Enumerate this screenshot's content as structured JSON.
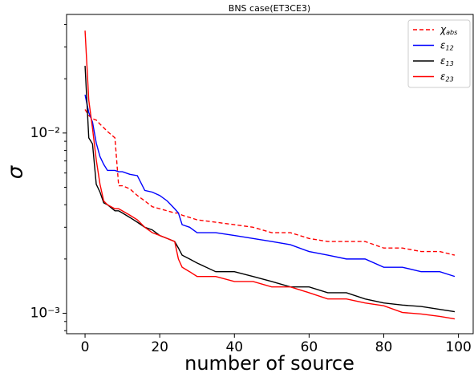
{
  "chart_data": {
    "type": "line",
    "title": "BNS case(ET3CE3)",
    "xlabel": "number of source",
    "ylabel": "σ",
    "x": [
      0,
      1,
      2,
      3,
      4,
      5,
      6,
      8,
      9,
      10,
      12,
      14,
      16,
      18,
      20,
      22,
      24,
      25,
      26,
      28,
      30,
      35,
      40,
      45,
      50,
      55,
      60,
      65,
      70,
      75,
      80,
      85,
      90,
      95,
      99
    ],
    "series": [
      {
        "name": "χ_abs",
        "color": "#ff0000",
        "dash": true,
        "values": [
          0.0135,
          0.0125,
          0.012,
          0.0118,
          0.0112,
          0.0107,
          0.0102,
          0.0094,
          0.0051,
          0.0051,
          0.0049,
          0.0045,
          0.0042,
          0.0039,
          0.0038,
          0.0037,
          0.0036,
          0.0036,
          0.0035,
          0.0034,
          0.0033,
          0.0032,
          0.0031,
          0.003,
          0.0028,
          0.0028,
          0.0026,
          0.0025,
          0.0025,
          0.0025,
          0.0023,
          0.0023,
          0.0022,
          0.0022,
          0.0021
        ]
      },
      {
        "name": "ε_12",
        "color": "#0000ff",
        "dash": false,
        "values": [
          0.0163,
          0.013,
          0.0115,
          0.0088,
          0.0074,
          0.0067,
          0.0062,
          0.0062,
          0.0061,
          0.0061,
          0.0059,
          0.0058,
          0.0048,
          0.0047,
          0.0045,
          0.0042,
          0.0038,
          0.0036,
          0.0031,
          0.003,
          0.0028,
          0.0028,
          0.0027,
          0.0026,
          0.0025,
          0.0024,
          0.0022,
          0.0021,
          0.002,
          0.002,
          0.0018,
          0.0018,
          0.0017,
          0.0017,
          0.0016
        ]
      },
      {
        "name": "ε_13",
        "color": "#000000",
        "dash": false,
        "values": [
          0.0236,
          0.0094,
          0.0087,
          0.0052,
          0.0047,
          0.0041,
          0.004,
          0.0037,
          0.0037,
          0.0036,
          0.0034,
          0.0032,
          0.003,
          0.0029,
          0.0027,
          0.0026,
          0.0025,
          0.0023,
          0.0021,
          0.002,
          0.0019,
          0.0017,
          0.0017,
          0.0016,
          0.0015,
          0.0014,
          0.0014,
          0.0013,
          0.0013,
          0.0012,
          0.00114,
          0.00111,
          0.00109,
          0.00105,
          0.00102
        ]
      },
      {
        "name": "ε_23",
        "color": "#ff0000",
        "dash": false,
        "values": [
          0.037,
          0.0152,
          0.0106,
          0.0071,
          0.0052,
          0.0042,
          0.004,
          0.0038,
          0.0038,
          0.0037,
          0.0035,
          0.0033,
          0.003,
          0.0028,
          0.0027,
          0.0026,
          0.0025,
          0.002,
          0.0018,
          0.0017,
          0.0016,
          0.0016,
          0.0015,
          0.0015,
          0.0014,
          0.0014,
          0.0013,
          0.0012,
          0.0012,
          0.00114,
          0.0011,
          0.00101,
          0.00099,
          0.00096,
          0.00093
        ]
      }
    ],
    "xlim": [
      -4.95,
      103.95
    ],
    "xticks": [
      0,
      20,
      40,
      60,
      80,
      100
    ],
    "ylim": [
      0.00077,
      0.0455
    ],
    "ylog": true,
    "yticks": [
      {
        "value": 0.001,
        "label": "10⁻³"
      },
      {
        "value": 0.01,
        "label": "10⁻²"
      }
    ],
    "yminorticks": [
      0.0008,
      0.0009,
      0.002,
      0.003,
      0.004,
      0.005,
      0.006,
      0.007,
      0.008,
      0.009,
      0.02,
      0.03,
      0.04
    ],
    "grid": false,
    "legend": "upper right"
  }
}
